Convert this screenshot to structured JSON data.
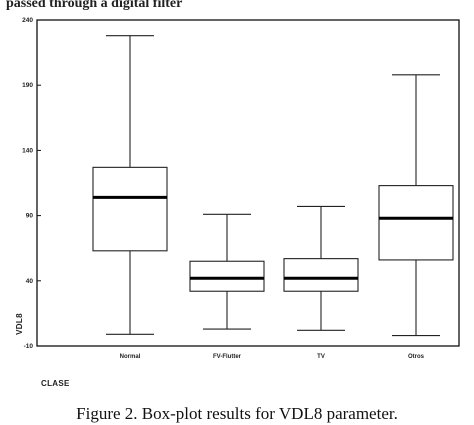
{
  "top_fragment": "passed through a digital filter",
  "caption": "Figure 2. Box-plot results for VDL8 parameter.",
  "chart_data": {
    "type": "box",
    "title": "",
    "xlabel": "CLASE",
    "ylabel": "VDL8",
    "ylim": [
      -10,
      240
    ],
    "yticks": [
      -10,
      40,
      90,
      140,
      190,
      240
    ],
    "ytick_labels": [
      "-10",
      "40",
      "90",
      "140",
      "190",
      "240"
    ],
    "categories": [
      "Normal",
      "FV-Flutter",
      "TV",
      "Otros"
    ],
    "boxes": [
      {
        "category": "Normal",
        "min": -1,
        "q1": 63,
        "median": 104,
        "q3": 127,
        "max": 228
      },
      {
        "category": "FV-Flutter",
        "min": 3,
        "q1": 32,
        "median": 42,
        "q3": 55,
        "max": 91
      },
      {
        "category": "TV",
        "min": 2,
        "q1": 32,
        "median": 42,
        "q3": 57,
        "max": 97
      },
      {
        "category": "Otros",
        "min": -2,
        "q1": 56,
        "median": 88,
        "q3": 113,
        "max": 198
      }
    ],
    "grid": false,
    "legend": "none"
  }
}
